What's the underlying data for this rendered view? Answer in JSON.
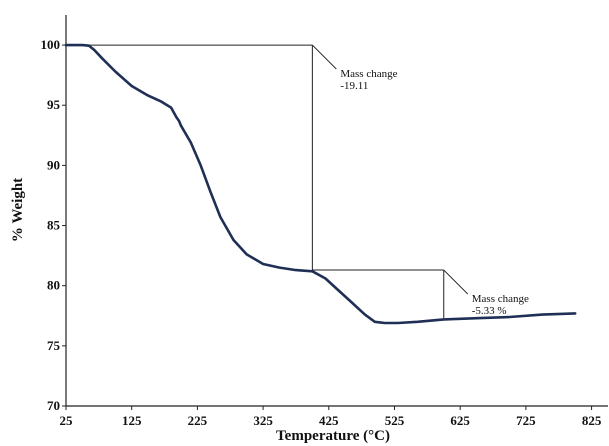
{
  "chart_data": {
    "type": "line",
    "title": "",
    "xlabel": "Temperature (°C)",
    "ylabel": "% Weight",
    "xlim": [
      25,
      850
    ],
    "ylim": [
      70,
      102.5
    ],
    "xticks": [
      25,
      125,
      225,
      325,
      425,
      525,
      625,
      725,
      825
    ],
    "xtick_labels": [
      "25",
      "125",
      "225",
      "325",
      "425",
      "525",
      "625",
      "725",
      "825"
    ],
    "yticks": [
      70,
      75,
      80,
      85,
      90,
      95,
      100
    ],
    "ytick_labels": [
      "70",
      "75",
      "80",
      "85",
      "90",
      "95",
      "100"
    ],
    "grid": false,
    "legend": "none",
    "series": [
      {
        "color": "#1f2f55",
        "x": [
          25,
          50,
          60,
          68,
          80,
          100,
          125,
          150,
          170,
          185,
          193,
          197,
          200,
          215,
          230,
          245,
          260,
          280,
          300,
          325,
          350,
          375,
          400,
          420,
          440,
          460,
          480,
          495,
          510,
          530,
          560,
          600,
          650,
          700,
          750,
          800
        ],
        "y": [
          100.0,
          100.0,
          99.95,
          99.6,
          98.9,
          97.8,
          96.6,
          95.8,
          95.3,
          94.8,
          94.0,
          93.7,
          93.3,
          91.9,
          90.0,
          87.8,
          85.7,
          83.8,
          82.6,
          81.8,
          81.5,
          81.3,
          81.2,
          80.6,
          79.6,
          78.6,
          77.6,
          77.0,
          76.9,
          76.9,
          77.0,
          77.2,
          77.3,
          77.4,
          77.6,
          77.7
        ]
      }
    ],
    "annotations": [
      {
        "line1": "Mass change",
        "line2": "-19.11",
        "from": {
          "x": 50,
          "y": 100
        },
        "to": {
          "x": 400,
          "y": 81.3
        }
      },
      {
        "line1": "Mass change",
        "line2": "-5.33 %",
        "from": {
          "x": 400,
          "y": 81.3
        },
        "to": {
          "x": 600,
          "y": 77.3
        }
      }
    ],
    "colors": {
      "curve": "#1f2f55",
      "axes": "#222222",
      "annotation_lines": "#222222"
    }
  }
}
